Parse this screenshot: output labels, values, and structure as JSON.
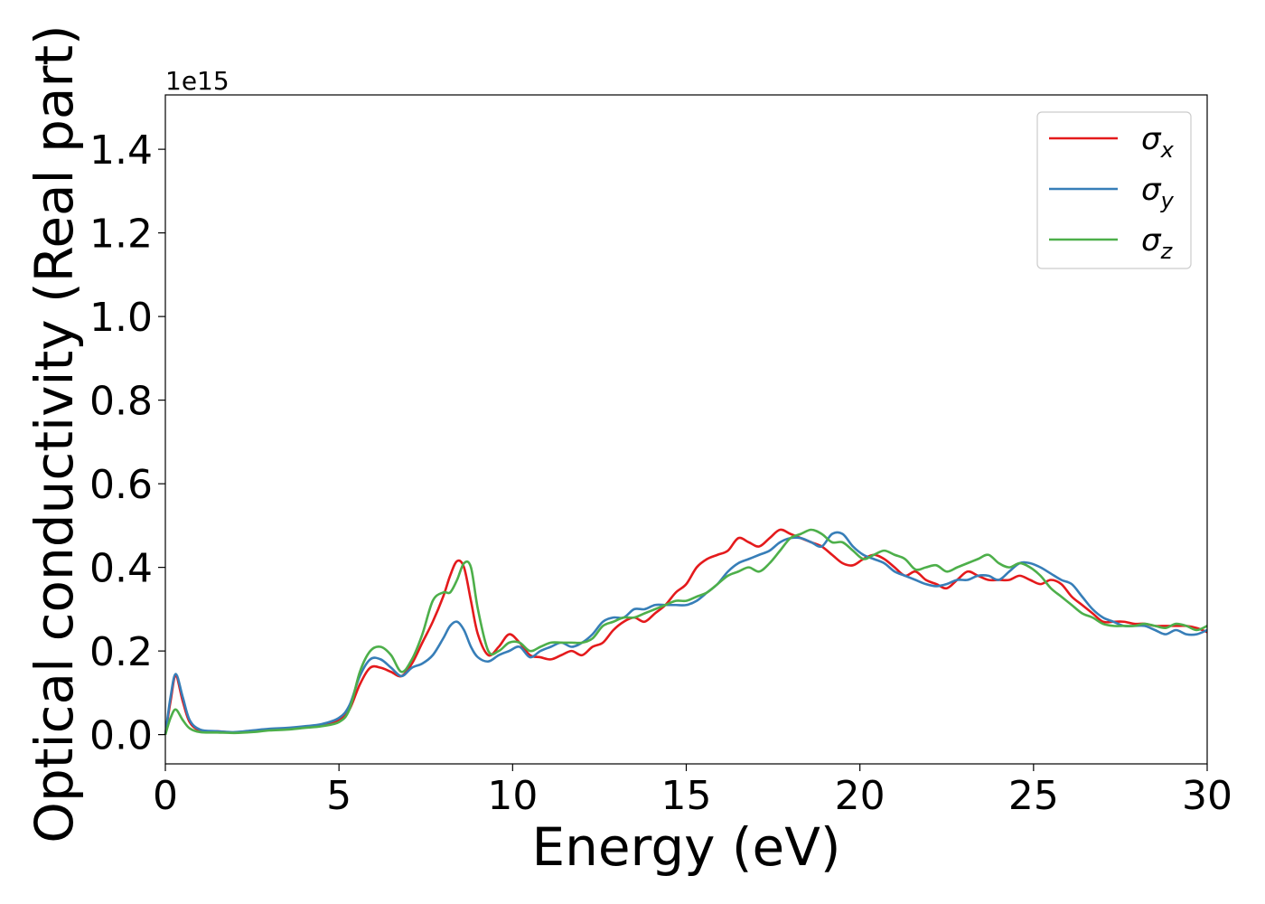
{
  "chart_data": {
    "type": "line",
    "title": "",
    "xlabel": "Energy (eV)",
    "ylabel": "Optical conductivity (Real part)",
    "y_offset_label": "1e15",
    "xlim": [
      0,
      30
    ],
    "ylim": [
      -0.07,
      1.53
    ],
    "xticks": [
      0,
      5,
      10,
      15,
      20,
      25,
      30
    ],
    "xtick_labels": [
      "0",
      "5",
      "10",
      "15",
      "20",
      "25",
      "30"
    ],
    "yticks": [
      0.0,
      0.2,
      0.4,
      0.6,
      0.8,
      1.0,
      1.2,
      1.4
    ],
    "ytick_labels": [
      "0.0",
      "0.2",
      "0.4",
      "0.6",
      "0.8",
      "1.0",
      "1.2",
      "1.4"
    ],
    "grid": false,
    "legend_position": "top-right",
    "series": [
      {
        "name": "σx",
        "legend_base": "σ",
        "legend_sub": "x",
        "color": "#e41a1c",
        "x": [
          0,
          0.15,
          0.3,
          0.5,
          0.7,
          1.0,
          1.5,
          2.0,
          2.5,
          3.0,
          3.5,
          4.0,
          4.5,
          5.0,
          5.3,
          5.6,
          5.9,
          6.2,
          6.5,
          6.8,
          7.1,
          7.4,
          7.7,
          8.0,
          8.2,
          8.4,
          8.6,
          8.8,
          9.0,
          9.3,
          9.6,
          9.9,
          10.2,
          10.5,
          10.8,
          11.1,
          11.4,
          11.7,
          12.0,
          12.3,
          12.6,
          12.9,
          13.2,
          13.5,
          13.8,
          14.1,
          14.4,
          14.7,
          15.0,
          15.3,
          15.6,
          15.9,
          16.2,
          16.5,
          16.8,
          17.1,
          17.4,
          17.7,
          18.0,
          18.3,
          18.6,
          18.9,
          19.2,
          19.5,
          19.8,
          20.1,
          20.4,
          20.7,
          21.0,
          21.3,
          21.6,
          21.9,
          22.2,
          22.5,
          22.8,
          23.1,
          23.4,
          23.7,
          24.0,
          24.3,
          24.6,
          24.9,
          25.2,
          25.5,
          25.8,
          26.1,
          26.4,
          26.7,
          27.0,
          27.3,
          27.6,
          27.9,
          28.2,
          28.5,
          28.8,
          29.1,
          29.4,
          29.7,
          30.0
        ],
        "y": [
          0.0,
          0.08,
          0.14,
          0.08,
          0.03,
          0.01,
          0.008,
          0.005,
          0.008,
          0.012,
          0.015,
          0.018,
          0.022,
          0.035,
          0.06,
          0.12,
          0.16,
          0.16,
          0.15,
          0.14,
          0.17,
          0.22,
          0.27,
          0.33,
          0.38,
          0.415,
          0.4,
          0.32,
          0.24,
          0.19,
          0.21,
          0.24,
          0.22,
          0.19,
          0.185,
          0.18,
          0.19,
          0.2,
          0.19,
          0.21,
          0.22,
          0.25,
          0.27,
          0.28,
          0.27,
          0.29,
          0.31,
          0.34,
          0.36,
          0.4,
          0.42,
          0.43,
          0.44,
          0.47,
          0.46,
          0.45,
          0.47,
          0.49,
          0.48,
          0.47,
          0.46,
          0.45,
          0.43,
          0.41,
          0.405,
          0.42,
          0.43,
          0.42,
          0.4,
          0.38,
          0.39,
          0.37,
          0.36,
          0.35,
          0.37,
          0.39,
          0.38,
          0.37,
          0.37,
          0.37,
          0.38,
          0.37,
          0.36,
          0.37,
          0.36,
          0.33,
          0.31,
          0.29,
          0.27,
          0.27,
          0.27,
          0.265,
          0.265,
          0.26,
          0.26,
          0.26,
          0.26,
          0.255,
          0.245
        ]
      },
      {
        "name": "σy",
        "legend_base": "σ",
        "legend_sub": "y",
        "color": "#377eb8",
        "x": [
          0,
          0.15,
          0.3,
          0.5,
          0.7,
          1.0,
          1.5,
          2.0,
          2.5,
          3.0,
          3.5,
          4.0,
          4.5,
          5.0,
          5.3,
          5.6,
          5.9,
          6.2,
          6.5,
          6.8,
          7.1,
          7.4,
          7.7,
          8.0,
          8.2,
          8.4,
          8.6,
          8.8,
          9.0,
          9.3,
          9.6,
          9.9,
          10.2,
          10.5,
          10.8,
          11.1,
          11.4,
          11.7,
          12.0,
          12.3,
          12.6,
          12.9,
          13.2,
          13.5,
          13.8,
          14.1,
          14.4,
          14.7,
          15.0,
          15.3,
          15.6,
          15.9,
          16.2,
          16.5,
          16.8,
          17.1,
          17.4,
          17.7,
          18.0,
          18.3,
          18.6,
          18.9,
          19.2,
          19.5,
          19.8,
          20.1,
          20.4,
          20.7,
          21.0,
          21.3,
          21.6,
          21.9,
          22.2,
          22.5,
          22.8,
          23.1,
          23.4,
          23.7,
          24.0,
          24.3,
          24.6,
          24.9,
          25.2,
          25.5,
          25.8,
          26.1,
          26.4,
          26.7,
          27.0,
          27.3,
          27.6,
          27.9,
          28.2,
          28.5,
          28.8,
          29.1,
          29.4,
          29.7,
          30.0
        ],
        "y": [
          0.0,
          0.09,
          0.145,
          0.09,
          0.035,
          0.012,
          0.008,
          0.006,
          0.01,
          0.014,
          0.016,
          0.02,
          0.025,
          0.04,
          0.07,
          0.14,
          0.18,
          0.18,
          0.16,
          0.14,
          0.16,
          0.17,
          0.19,
          0.23,
          0.26,
          0.27,
          0.25,
          0.21,
          0.185,
          0.175,
          0.19,
          0.2,
          0.21,
          0.185,
          0.2,
          0.21,
          0.22,
          0.21,
          0.22,
          0.24,
          0.27,
          0.28,
          0.28,
          0.3,
          0.3,
          0.31,
          0.31,
          0.31,
          0.31,
          0.32,
          0.34,
          0.36,
          0.39,
          0.41,
          0.42,
          0.43,
          0.44,
          0.46,
          0.47,
          0.47,
          0.46,
          0.45,
          0.48,
          0.48,
          0.45,
          0.43,
          0.42,
          0.41,
          0.39,
          0.38,
          0.37,
          0.36,
          0.355,
          0.36,
          0.37,
          0.37,
          0.38,
          0.38,
          0.37,
          0.39,
          0.41,
          0.41,
          0.4,
          0.385,
          0.37,
          0.36,
          0.33,
          0.3,
          0.28,
          0.27,
          0.26,
          0.26,
          0.26,
          0.25,
          0.24,
          0.25,
          0.24,
          0.24,
          0.25
        ]
      },
      {
        "name": "σz",
        "legend_base": "σ",
        "legend_sub": "z",
        "color": "#4daf4a",
        "x": [
          0,
          0.15,
          0.3,
          0.5,
          0.7,
          1.0,
          1.5,
          2.0,
          2.5,
          3.0,
          3.5,
          4.0,
          4.5,
          5.0,
          5.3,
          5.6,
          5.9,
          6.2,
          6.5,
          6.8,
          7.1,
          7.4,
          7.7,
          8.0,
          8.2,
          8.4,
          8.6,
          8.8,
          9.0,
          9.3,
          9.6,
          9.9,
          10.2,
          10.5,
          10.8,
          11.1,
          11.4,
          11.7,
          12.0,
          12.3,
          12.6,
          12.9,
          13.2,
          13.5,
          13.8,
          14.1,
          14.4,
          14.7,
          15.0,
          15.3,
          15.6,
          15.9,
          16.2,
          16.5,
          16.8,
          17.1,
          17.4,
          17.7,
          18.0,
          18.3,
          18.6,
          18.9,
          19.2,
          19.5,
          19.8,
          20.1,
          20.4,
          20.7,
          21.0,
          21.3,
          21.6,
          21.9,
          22.2,
          22.5,
          22.8,
          23.1,
          23.4,
          23.7,
          24.0,
          24.3,
          24.6,
          24.9,
          25.2,
          25.5,
          25.8,
          26.1,
          26.4,
          26.7,
          27.0,
          27.3,
          27.6,
          27.9,
          28.2,
          28.5,
          28.8,
          29.1,
          29.4,
          29.7,
          30.0
        ],
        "y": [
          0.0,
          0.04,
          0.06,
          0.035,
          0.015,
          0.006,
          0.005,
          0.004,
          0.006,
          0.01,
          0.012,
          0.016,
          0.02,
          0.03,
          0.06,
          0.15,
          0.2,
          0.21,
          0.19,
          0.15,
          0.18,
          0.24,
          0.32,
          0.34,
          0.34,
          0.37,
          0.41,
          0.4,
          0.3,
          0.2,
          0.2,
          0.22,
          0.22,
          0.2,
          0.21,
          0.22,
          0.22,
          0.22,
          0.22,
          0.23,
          0.26,
          0.27,
          0.28,
          0.28,
          0.29,
          0.3,
          0.31,
          0.32,
          0.32,
          0.33,
          0.34,
          0.36,
          0.38,
          0.39,
          0.4,
          0.39,
          0.41,
          0.44,
          0.47,
          0.48,
          0.49,
          0.48,
          0.46,
          0.46,
          0.44,
          0.42,
          0.43,
          0.44,
          0.43,
          0.42,
          0.395,
          0.4,
          0.405,
          0.39,
          0.4,
          0.41,
          0.42,
          0.43,
          0.41,
          0.4,
          0.41,
          0.4,
          0.38,
          0.35,
          0.33,
          0.31,
          0.29,
          0.28,
          0.265,
          0.26,
          0.26,
          0.26,
          0.265,
          0.26,
          0.255,
          0.265,
          0.26,
          0.25,
          0.26
        ]
      }
    ]
  }
}
